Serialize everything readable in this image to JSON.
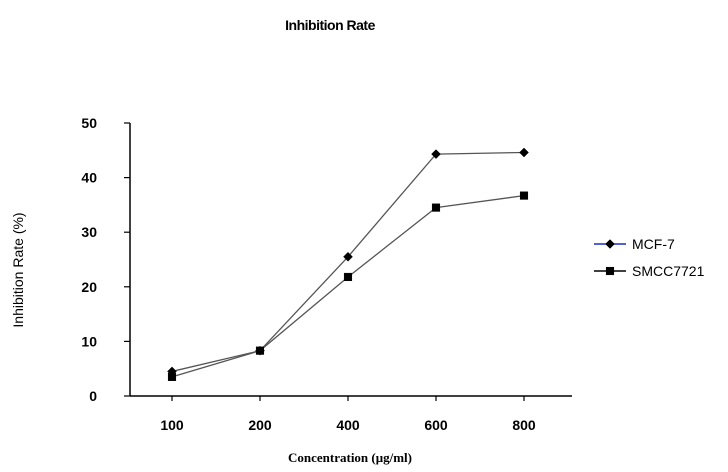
{
  "chart_data": {
    "type": "line",
    "title": "Inhibition Rate",
    "xlabel": "Concentration (μg/ml)",
    "ylabel": "Inhibition Rate (%)",
    "categories": [
      "100",
      "200",
      "400",
      "600",
      "800"
    ],
    "ylim": [
      0,
      50
    ],
    "yticks": [
      0,
      10,
      20,
      30,
      40,
      50
    ],
    "grid": false,
    "legend_position": "right",
    "series": [
      {
        "name": "MCF-7",
        "marker": "diamond",
        "color": "#000000",
        "legend_line_color": "#1a2fbf",
        "values": [
          4.5,
          8.3,
          25.5,
          44.3,
          44.6
        ]
      },
      {
        "name": "SMCC7721",
        "marker": "square",
        "color": "#000000",
        "legend_line_color": "#000000",
        "values": [
          3.5,
          8.3,
          21.8,
          34.5,
          36.7
        ]
      }
    ]
  }
}
